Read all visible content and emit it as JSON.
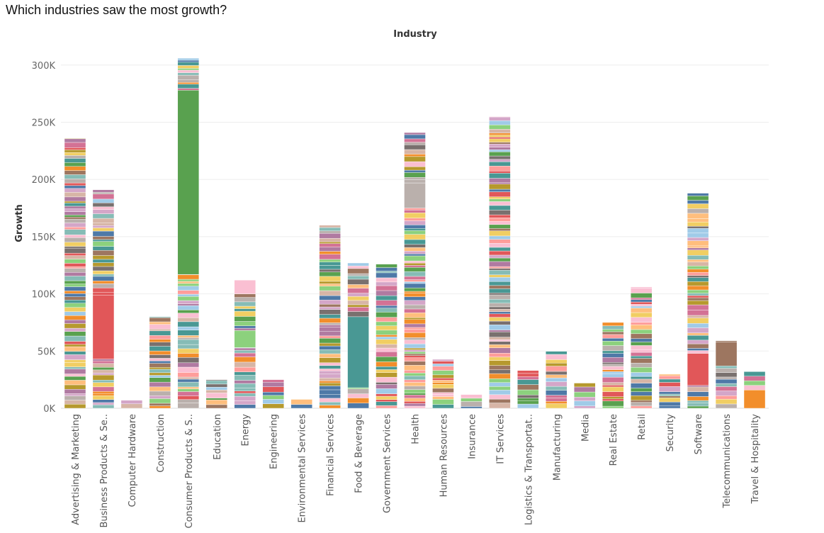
{
  "page": {
    "title": "Which industries saw the most growth?"
  },
  "chart_data": {
    "type": "bar",
    "stacked": true,
    "title": "Industry",
    "xlabel": "",
    "ylabel": "Growth",
    "ylim": [
      0,
      320000
    ],
    "yticks": [
      {
        "value": 0,
        "label": "0K"
      },
      {
        "value": 50000,
        "label": "50K"
      },
      {
        "value": 100000,
        "label": "100K"
      },
      {
        "value": 150000,
        "label": "150K"
      },
      {
        "value": 200000,
        "label": "200K"
      },
      {
        "value": 250000,
        "label": "250K"
      },
      {
        "value": 300000,
        "label": "300K"
      }
    ],
    "grid": true,
    "legend": "none",
    "categories": [
      "Advertising & Marketing",
      "Business Products & Se..",
      "Computer Hardware",
      "Construction",
      "Consumer Products & S..",
      "Education",
      "Energy",
      "Engineering",
      "Environmental Services",
      "Financial Services",
      "Food & Beverage",
      "Government Services",
      "Health",
      "Human Resources",
      "Insurance",
      "IT Services",
      "Logistics & Transportat..",
      "Manufacturing",
      "Media",
      "Real Estate",
      "Retail",
      "Security",
      "Software",
      "Telecommunications",
      "Travel & Hospitality"
    ],
    "values": [
      236000,
      191000,
      7000,
      80000,
      306000,
      25000,
      112000,
      25000,
      8000,
      160000,
      127000,
      126000,
      241000,
      43000,
      12000,
      255000,
      33000,
      50000,
      22000,
      75000,
      106000,
      30000,
      188000,
      59000,
      32000
    ],
    "notable_segments": [
      {
        "category": "Business Products & Se..",
        "from": 43000,
        "to": 99000,
        "color": "#e15759"
      },
      {
        "category": "Consumer Products & S..",
        "from": 117000,
        "to": 278000,
        "color": "#59a14f"
      },
      {
        "category": "Food & Beverage",
        "from": 18000,
        "to": 80000,
        "color": "#499894"
      },
      {
        "category": "Software",
        "from": 20000,
        "to": 48000,
        "color": "#e15759"
      },
      {
        "category": "Travel & Hospitality",
        "from": 0,
        "to": 16000,
        "color": "#f28e2b"
      },
      {
        "category": "Telecommunications",
        "from": 37000,
        "to": 58000,
        "color": "#9d7660"
      },
      {
        "category": "Health",
        "from": 175000,
        "to": 197000,
        "color": "#bab0ac"
      },
      {
        "category": "Energy",
        "from": 53000,
        "to": 68000,
        "color": "#8cd17d"
      },
      {
        "category": "Energy",
        "from": 100000,
        "to": 112000,
        "color": "#fabfd2"
      }
    ],
    "palette": [
      "#4e79a7",
      "#a0cbe8",
      "#f28e2b",
      "#ffbe7d",
      "#59a14f",
      "#8cd17d",
      "#b6992d",
      "#f1ce63",
      "#499894",
      "#86bcb6",
      "#e15759",
      "#ff9d9a",
      "#79706e",
      "#bab0ac",
      "#d37295",
      "#fabfd2",
      "#b07aa1",
      "#d4a6c8",
      "#9d7660",
      "#d7b5a6"
    ]
  }
}
